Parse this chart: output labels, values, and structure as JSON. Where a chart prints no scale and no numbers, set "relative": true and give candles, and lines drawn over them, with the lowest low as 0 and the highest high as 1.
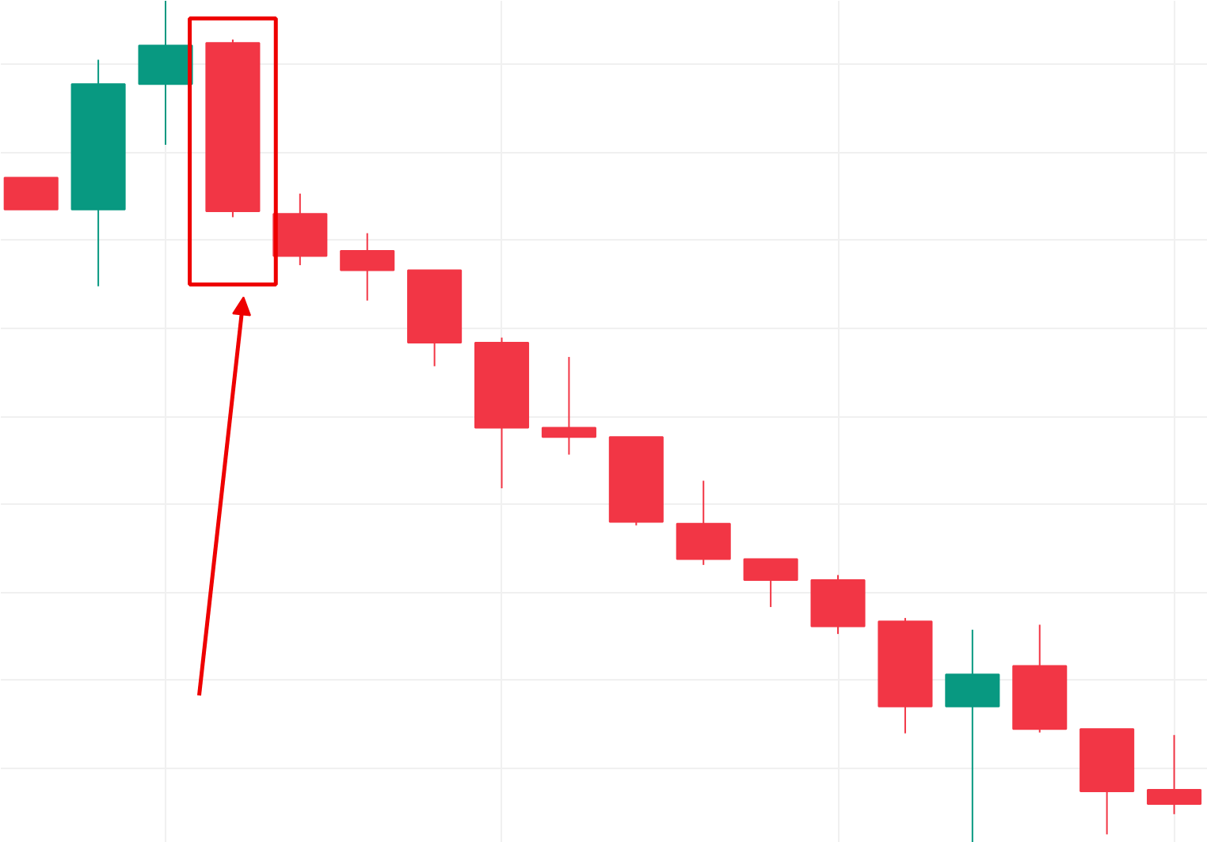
{
  "chart_data": {
    "type": "candlestick",
    "relative": true,
    "grid": true,
    "categories": [
      null,
      null,
      null,
      null,
      null,
      null,
      null,
      null,
      null,
      null,
      null,
      null,
      null,
      null,
      null,
      null,
      null,
      null
    ],
    "ohlc": [
      [
        0.79,
        0.79,
        0.752,
        0.752
      ],
      [
        0.752,
        0.93,
        0.661,
        0.901
      ],
      [
        0.901,
        1,
        0.829,
        0.947
      ],
      [
        0.95,
        0.954,
        0.743,
        0.75
      ],
      [
        0.747,
        0.771,
        0.686,
        0.697
      ],
      [
        0.703,
        0.724,
        0.644,
        0.68
      ],
      [
        0.68,
        0.68,
        0.566,
        0.594
      ],
      [
        0.594,
        0.6,
        0.421,
        0.493
      ],
      [
        0.493,
        0.577,
        0.461,
        0.482
      ],
      [
        0.482,
        0.482,
        0.377,
        0.381
      ],
      [
        0.379,
        0.43,
        0.33,
        0.337
      ],
      [
        0.337,
        0.337,
        0.28,
        0.312
      ],
      [
        0.312,
        0.318,
        0.248,
        0.257
      ],
      [
        0.263,
        0.267,
        0.13,
        0.162
      ],
      [
        0.162,
        0.253,
        0,
        0.2
      ],
      [
        0.21,
        0.259,
        0.131,
        0.135
      ],
      [
        0.135,
        0.135,
        0.01,
        0.061
      ],
      [
        0.063,
        0.128,
        0.034,
        0.046
      ]
    ],
    "colors": [
      "#f23645",
      "#089981",
      "#089981",
      "#f23645",
      "#f23645",
      "#f23645",
      "#f23645",
      "#f23645",
      "#f23645",
      "#f23645",
      "#f23645",
      "#f23645",
      "#f23645",
      "#f23645",
      "#089981",
      "#f23645",
      "#f23645",
      "#f23645"
    ]
  }
}
